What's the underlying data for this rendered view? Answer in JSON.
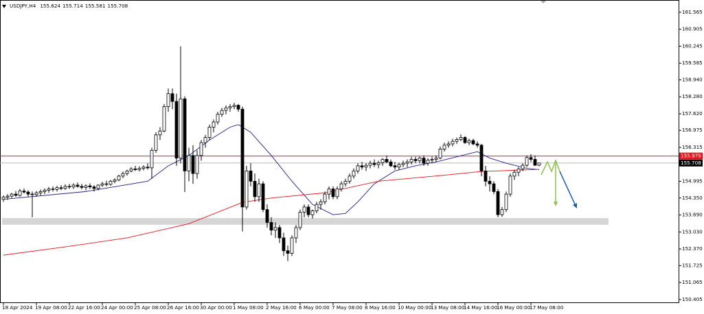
{
  "chart_data": {
    "type": "candlestick",
    "symbol": "USDJPY,H4",
    "ylim": [
      150.296,
      162.04
    ],
    "yticks": [
      161.565,
      160.905,
      160.245,
      159.585,
      {
        "value": 158.94,
        "label": "158.940"
      },
      {
        "value": 158.28,
        "label": "158.280"
      },
      {
        "value": 157.62,
        "label": "157.620"
      },
      156.975,
      156.315,
      154.995,
      {
        "value": 154.35,
        "label": "154.350"
      },
      {
        "value": 153.69,
        "label": "153.690"
      },
      {
        "value": 153.03,
        "label": "153.030"
      },
      {
        "value": 152.37,
        "label": "152.370"
      },
      151.725,
      151.065,
      150.405
    ],
    "xticks": [
      {
        "value": 0,
        "label": "18 Apr 2024"
      },
      {
        "value": 8,
        "label": "19 Apr 08:00"
      },
      {
        "value": 16,
        "label": "22 Apr 16:00"
      },
      {
        "value": 24,
        "label": "24 Apr 00:00"
      },
      {
        "value": 32,
        "label": "25 Apr 08:00"
      },
      {
        "value": 40,
        "label": "26 Apr 16:00"
      },
      {
        "value": 48,
        "label": "30 Apr 00:00"
      },
      {
        "value": 56,
        "label": "1 May 08:00"
      },
      {
        "value": 64,
        "label": "2 May 16:00"
      },
      {
        "value": 72,
        "label": "6 May 00:00"
      },
      {
        "value": 80,
        "label": "7 May 08:00"
      },
      {
        "value": 88,
        "label": "8 May 16:00"
      },
      {
        "value": 96,
        "label": "10 May 00:00"
      },
      {
        "value": 104,
        "label": "13 May 08:00"
      },
      {
        "value": 112,
        "label": "14 May 16:00"
      },
      {
        "value": 120,
        "label": "16 May 00:00"
      },
      {
        "value": 128,
        "label": "17 May 08:00"
      }
    ],
    "up_color": "#ffffff",
    "down_color": "#000000",
    "candles": [
      [
        154.3,
        154.45,
        154.2,
        154.38
      ],
      [
        154.38,
        154.5,
        154.28,
        154.42
      ],
      [
        154.42,
        154.55,
        154.35,
        154.5
      ],
      [
        154.5,
        154.62,
        154.4,
        154.45
      ],
      [
        154.45,
        154.7,
        154.4,
        154.62
      ],
      [
        154.62,
        154.72,
        154.52,
        154.58
      ],
      [
        154.58,
        154.65,
        154.4,
        154.5
      ],
      [
        154.5,
        154.6,
        153.6,
        154.48
      ],
      [
        154.48,
        154.62,
        154.4,
        154.55
      ],
      [
        154.55,
        154.68,
        154.45,
        154.6
      ],
      [
        154.6,
        154.72,
        154.5,
        154.65
      ],
      [
        154.65,
        154.78,
        154.55,
        154.7
      ],
      [
        154.7,
        154.8,
        154.6,
        154.68
      ],
      [
        154.68,
        154.82,
        154.6,
        154.75
      ],
      [
        154.75,
        154.85,
        154.65,
        154.72
      ],
      [
        154.72,
        154.88,
        154.66,
        154.8
      ],
      [
        154.8,
        154.9,
        154.7,
        154.78
      ],
      [
        154.78,
        154.92,
        154.7,
        154.85
      ],
      [
        154.85,
        154.95,
        154.75,
        154.8
      ],
      [
        154.8,
        154.9,
        154.68,
        154.76
      ],
      [
        154.76,
        154.88,
        154.65,
        154.82
      ],
      [
        154.82,
        154.92,
        154.7,
        154.78
      ],
      [
        154.78,
        154.85,
        154.6,
        154.72
      ],
      [
        154.72,
        154.88,
        154.65,
        154.85
      ],
      [
        154.85,
        154.98,
        154.78,
        154.9
      ],
      [
        154.9,
        155.02,
        154.8,
        154.88
      ],
      [
        154.88,
        155.05,
        154.82,
        155.0
      ],
      [
        155.0,
        155.12,
        154.92,
        155.05
      ],
      [
        155.05,
        155.25,
        155.0,
        155.2
      ],
      [
        155.2,
        155.38,
        155.12,
        155.3
      ],
      [
        155.3,
        155.45,
        155.22,
        155.4
      ],
      [
        155.4,
        155.55,
        155.35,
        155.48
      ],
      [
        155.48,
        155.6,
        155.4,
        155.45
      ],
      [
        155.45,
        155.58,
        155.38,
        155.5
      ],
      [
        155.5,
        155.62,
        155.42,
        155.55
      ],
      [
        155.55,
        155.7,
        155.45,
        155.52
      ],
      [
        155.52,
        156.3,
        155.1,
        156.2
      ],
      [
        156.2,
        156.9,
        156.1,
        156.8
      ],
      [
        156.8,
        157.1,
        156.6,
        156.95
      ],
      [
        156.95,
        158.0,
        156.9,
        157.9
      ],
      [
        157.9,
        158.6,
        157.7,
        158.4
      ],
      [
        158.4,
        158.6,
        157.8,
        158.1
      ],
      [
        158.1,
        158.4,
        155.6,
        155.9
      ],
      [
        155.9,
        160.24,
        155.7,
        158.2
      ],
      [
        158.2,
        158.3,
        154.58,
        155.4
      ],
      [
        155.4,
        156.3,
        155.0,
        156.0
      ],
      [
        156.0,
        156.4,
        154.9,
        155.3
      ],
      [
        155.3,
        156.2,
        155.1,
        156.0
      ],
      [
        156.0,
        156.6,
        155.8,
        156.5
      ],
      [
        156.5,
        156.8,
        156.3,
        156.7
      ],
      [
        156.7,
        157.2,
        156.6,
        157.1
      ],
      [
        157.1,
        157.4,
        156.9,
        157.3
      ],
      [
        157.3,
        157.7,
        157.2,
        157.6
      ],
      [
        157.6,
        157.85,
        157.5,
        157.75
      ],
      [
        157.75,
        157.95,
        157.6,
        157.85
      ],
      [
        157.85,
        158.0,
        157.7,
        157.9
      ],
      [
        157.9,
        158.05,
        157.8,
        157.95
      ],
      [
        157.95,
        158.0,
        157.7,
        157.8
      ],
      [
        157.8,
        157.9,
        153.05,
        154.0
      ],
      [
        154.0,
        155.6,
        153.9,
        155.4
      ],
      [
        155.4,
        155.7,
        154.8,
        155.0
      ],
      [
        155.0,
        155.3,
        154.2,
        154.4
      ],
      [
        154.4,
        155.1,
        154.2,
        154.9
      ],
      [
        154.9,
        155.0,
        153.8,
        153.9
      ],
      [
        153.9,
        154.1,
        153.2,
        153.4
      ],
      [
        153.4,
        153.6,
        152.9,
        153.1
      ],
      [
        153.1,
        153.4,
        152.8,
        153.2
      ],
      [
        153.2,
        153.3,
        152.6,
        152.8
      ],
      [
        152.8,
        153.0,
        152.1,
        152.3
      ],
      [
        152.3,
        152.5,
        151.9,
        152.2
      ],
      [
        152.2,
        152.9,
        152.1,
        152.8
      ],
      [
        152.8,
        153.3,
        152.6,
        153.2
      ],
      [
        153.2,
        153.9,
        153.1,
        153.8
      ],
      [
        153.8,
        154.1,
        153.6,
        154.0
      ],
      [
        154.0,
        154.1,
        153.6,
        153.7
      ],
      [
        153.7,
        153.9,
        153.55,
        153.85
      ],
      [
        153.85,
        154.2,
        153.75,
        154.1
      ],
      [
        154.1,
        154.3,
        153.9,
        154.2
      ],
      [
        154.2,
        154.6,
        154.1,
        154.5
      ],
      [
        154.5,
        154.8,
        154.3,
        154.7
      ],
      [
        154.7,
        154.8,
        154.3,
        154.4
      ],
      [
        154.4,
        154.8,
        154.3,
        154.7
      ],
      [
        154.7,
        155.0,
        154.6,
        154.9
      ],
      [
        154.9,
        155.1,
        154.8,
        155.0
      ],
      [
        155.0,
        155.3,
        154.9,
        155.2
      ],
      [
        155.2,
        155.5,
        155.1,
        155.4
      ],
      [
        155.4,
        155.7,
        155.3,
        155.6
      ],
      [
        155.6,
        155.75,
        155.45,
        155.55
      ],
      [
        155.55,
        155.7,
        155.4,
        155.62
      ],
      [
        155.62,
        155.8,
        155.5,
        155.7
      ],
      [
        155.7,
        155.85,
        155.55,
        155.65
      ],
      [
        155.65,
        155.8,
        155.5,
        155.72
      ],
      [
        155.72,
        155.9,
        155.6,
        155.85
      ],
      [
        155.85,
        156.0,
        155.7,
        155.75
      ],
      [
        155.75,
        155.85,
        155.55,
        155.6
      ],
      [
        155.6,
        155.75,
        155.45,
        155.55
      ],
      [
        155.55,
        155.72,
        155.45,
        155.65
      ],
      [
        155.65,
        155.8,
        155.55,
        155.7
      ],
      [
        155.7,
        155.85,
        155.55,
        155.75
      ],
      [
        155.75,
        155.95,
        155.65,
        155.85
      ],
      [
        155.85,
        155.95,
        155.7,
        155.8
      ],
      [
        155.8,
        155.95,
        155.7,
        155.9
      ],
      [
        155.9,
        156.0,
        155.6,
        155.7
      ],
      [
        155.7,
        155.9,
        155.6,
        155.82
      ],
      [
        155.82,
        155.95,
        155.7,
        155.85
      ],
      [
        155.85,
        156.0,
        155.75,
        155.9
      ],
      [
        155.9,
        156.35,
        155.85,
        156.25
      ],
      [
        156.25,
        156.5,
        156.15,
        156.4
      ],
      [
        156.4,
        156.55,
        156.3,
        156.45
      ],
      [
        156.45,
        156.65,
        156.35,
        156.55
      ],
      [
        156.55,
        156.7,
        156.45,
        156.62
      ],
      [
        156.62,
        156.82,
        156.55,
        156.7
      ],
      [
        156.7,
        156.75,
        156.45,
        156.5
      ],
      [
        156.5,
        156.65,
        156.4,
        156.58
      ],
      [
        156.58,
        156.65,
        156.4,
        156.45
      ],
      [
        156.45,
        156.55,
        156.3,
        156.4
      ],
      [
        156.4,
        156.45,
        155.2,
        155.4
      ],
      [
        155.4,
        155.6,
        154.8,
        155.0
      ],
      [
        155.0,
        155.2,
        154.6,
        154.9
      ],
      [
        154.9,
        155.0,
        154.5,
        154.6
      ],
      [
        154.6,
        154.7,
        153.6,
        153.7
      ],
      [
        153.7,
        154.0,
        153.62,
        153.9
      ],
      [
        153.9,
        154.6,
        153.8,
        154.5
      ],
      [
        154.5,
        155.3,
        154.4,
        155.2
      ],
      [
        155.2,
        155.45,
        155.05,
        155.35
      ],
      [
        155.35,
        155.55,
        155.2,
        155.48
      ],
      [
        155.48,
        155.7,
        155.4,
        155.62
      ],
      [
        155.62,
        156.0,
        155.55,
        155.92
      ],
      [
        155.92,
        156.05,
        155.75,
        155.85
      ],
      [
        155.85,
        156.0,
        155.6,
        155.62
      ],
      [
        155.624,
        155.714,
        155.581,
        155.708
      ]
    ],
    "indicators": [
      {
        "color": "#1c1c8c",
        "x": [
          0,
          20,
          35,
          40,
          45,
          50,
          55,
          57,
          60,
          65,
          70,
          75,
          80,
          83,
          86,
          90,
          95,
          100,
          105,
          110,
          115,
          118,
          122,
          127,
          130
        ],
        "values": [
          154.3,
          154.6,
          155.0,
          155.6,
          156.0,
          156.6,
          157.1,
          157.2,
          156.9,
          156.0,
          155.0,
          154.1,
          153.7,
          153.75,
          154.2,
          154.9,
          155.4,
          155.6,
          155.75,
          155.95,
          156.15,
          155.9,
          155.7,
          155.5,
          155.45
        ]
      },
      {
        "color": "#e8141c",
        "x": [
          0,
          15,
          30,
          45,
          58,
          65,
          78,
          91,
          108,
          116,
          130
        ],
        "values": [
          152.13,
          152.45,
          152.8,
          153.35,
          154.18,
          154.35,
          154.55,
          155.0,
          155.25,
          155.38,
          155.46
        ]
      }
    ],
    "level": {
      "value": 155.979,
      "color": "#e8141c"
    },
    "zone": {
      "from": 153.31,
      "to": 153.57,
      "color": "#d6d6d6"
    }
  }
}
